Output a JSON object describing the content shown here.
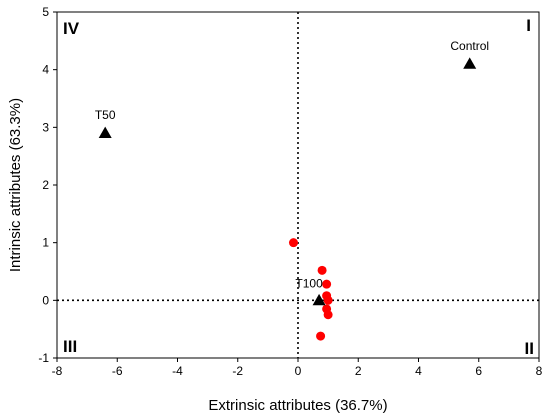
{
  "chart_data": {
    "type": "scatter",
    "xlabel": "Extrinsic attributes (36.7%)",
    "ylabel": "Intrinsic attributes (63.3%)",
    "xlim": [
      -8,
      8
    ],
    "ylim": [
      -1,
      5
    ],
    "x_ticks": [
      -8,
      -6,
      -4,
      -2,
      0,
      2,
      4,
      6,
      8
    ],
    "y_ticks": [
      -1,
      0,
      1,
      2,
      3,
      4,
      5
    ],
    "grid": false,
    "reference_lines": {
      "x": 0,
      "y": 0,
      "style": "dotted"
    },
    "quadrant_labels": [
      {
        "text": "I",
        "position": "top-right"
      },
      {
        "text": "II",
        "position": "bottom-right"
      },
      {
        "text": "III",
        "position": "bottom-left"
      },
      {
        "text": "IV",
        "position": "top-left"
      }
    ],
    "treatments": [
      {
        "label": "Control",
        "x": 5.7,
        "y": 4.1,
        "marker": "triangle",
        "color": "#000000"
      },
      {
        "label": "T50",
        "x": -6.4,
        "y": 2.9,
        "marker": "triangle",
        "color": "#000000"
      },
      {
        "label": "T100",
        "x": 0.7,
        "y": 0.0,
        "marker": "triangle",
        "color": "#000000"
      }
    ],
    "attributes": {
      "marker": "circle",
      "color": "#ff0000",
      "points": [
        {
          "x": -0.15,
          "y": 1.0
        },
        {
          "x": 0.8,
          "y": 0.52
        },
        {
          "x": 0.95,
          "y": 0.28
        },
        {
          "x": 0.95,
          "y": 0.08
        },
        {
          "x": 1.0,
          "y": 0.0
        },
        {
          "x": 0.95,
          "y": -0.15
        },
        {
          "x": 1.0,
          "y": -0.25
        },
        {
          "x": 0.75,
          "y": -0.62
        }
      ]
    }
  }
}
